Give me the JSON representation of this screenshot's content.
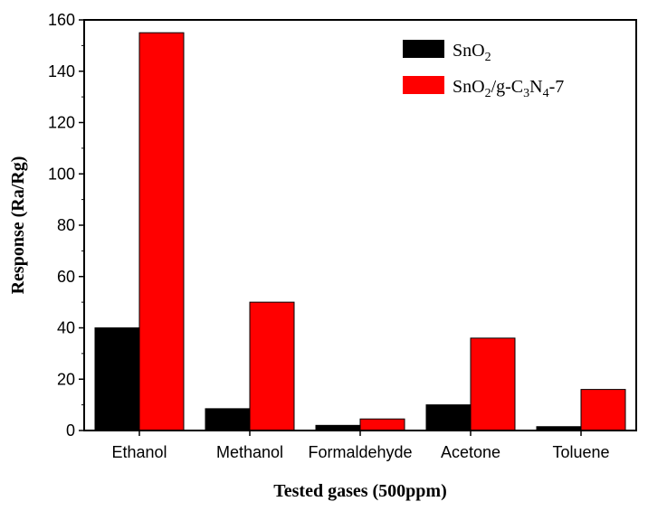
{
  "chart_data": {
    "type": "bar",
    "categories": [
      "Ethanol",
      "Methanol",
      "Formaldehyde",
      "Acetone",
      "Toluene"
    ],
    "series": [
      {
        "name": "SnO2",
        "color": "#000000",
        "values": [
          40,
          8.5,
          2,
          10,
          1.5
        ]
      },
      {
        "name": "SnO2/g-C3N4-7",
        "color": "#ff0000",
        "values": [
          155,
          50,
          4.5,
          36,
          16
        ]
      }
    ],
    "xlabel": "Tested gases (500ppm)",
    "ylabel": "Response (Ra/Rg)",
    "ylim": [
      0,
      160
    ],
    "yticks": [
      0,
      20,
      40,
      60,
      80,
      100,
      120,
      140,
      160
    ],
    "grid": false,
    "legend_position": "top-right"
  }
}
